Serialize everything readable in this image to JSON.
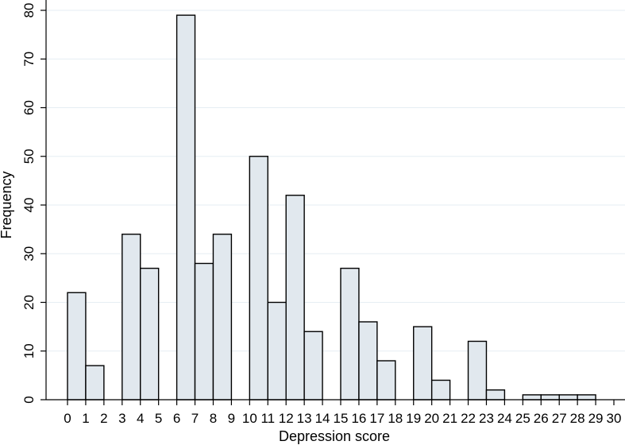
{
  "chart_data": {
    "type": "bar",
    "subtype": "histogram",
    "xlabel": "Depression score",
    "ylabel": "Frequency",
    "xlim": [
      0,
      30
    ],
    "ylim": [
      0,
      80
    ],
    "xticks": [
      0,
      1,
      2,
      3,
      4,
      5,
      6,
      7,
      8,
      9,
      10,
      11,
      12,
      13,
      14,
      15,
      16,
      17,
      18,
      19,
      20,
      21,
      22,
      23,
      24,
      25,
      26,
      27,
      28,
      29,
      30
    ],
    "yticks": [
      0,
      10,
      20,
      30,
      40,
      50,
      60,
      70,
      80
    ],
    "bins": [
      {
        "start": 0,
        "end": 1,
        "value": 22
      },
      {
        "start": 1,
        "end": 2,
        "value": 7
      },
      {
        "start": 2,
        "end": 3,
        "value": 0
      },
      {
        "start": 3,
        "end": 4,
        "value": 34
      },
      {
        "start": 4,
        "end": 5,
        "value": 27
      },
      {
        "start": 5,
        "end": 6,
        "value": 0
      },
      {
        "start": 6,
        "end": 7,
        "value": 79
      },
      {
        "start": 7,
        "end": 8,
        "value": 28
      },
      {
        "start": 8,
        "end": 9,
        "value": 34
      },
      {
        "start": 9,
        "end": 10,
        "value": 0
      },
      {
        "start": 10,
        "end": 11,
        "value": 50
      },
      {
        "start": 11,
        "end": 12,
        "value": 20
      },
      {
        "start": 12,
        "end": 13,
        "value": 42
      },
      {
        "start": 13,
        "end": 14,
        "value": 14
      },
      {
        "start": 14,
        "end": 15,
        "value": 0
      },
      {
        "start": 15,
        "end": 16,
        "value": 27
      },
      {
        "start": 16,
        "end": 17,
        "value": 16
      },
      {
        "start": 17,
        "end": 18,
        "value": 8
      },
      {
        "start": 18,
        "end": 19,
        "value": 0
      },
      {
        "start": 19,
        "end": 20,
        "value": 15
      },
      {
        "start": 20,
        "end": 21,
        "value": 4
      },
      {
        "start": 21,
        "end": 22,
        "value": 0
      },
      {
        "start": 22,
        "end": 23,
        "value": 12
      },
      {
        "start": 23,
        "end": 24,
        "value": 2
      },
      {
        "start": 24,
        "end": 25,
        "value": 0
      },
      {
        "start": 25,
        "end": 26,
        "value": 1
      },
      {
        "start": 26,
        "end": 27,
        "value": 1
      },
      {
        "start": 27,
        "end": 28,
        "value": 1
      },
      {
        "start": 28,
        "end": 29,
        "value": 1
      }
    ],
    "grid": "horizontal",
    "bar_fill": "#e1e8ee",
    "bar_stroke": "#000000",
    "gridline_color": "#e6eef3"
  }
}
